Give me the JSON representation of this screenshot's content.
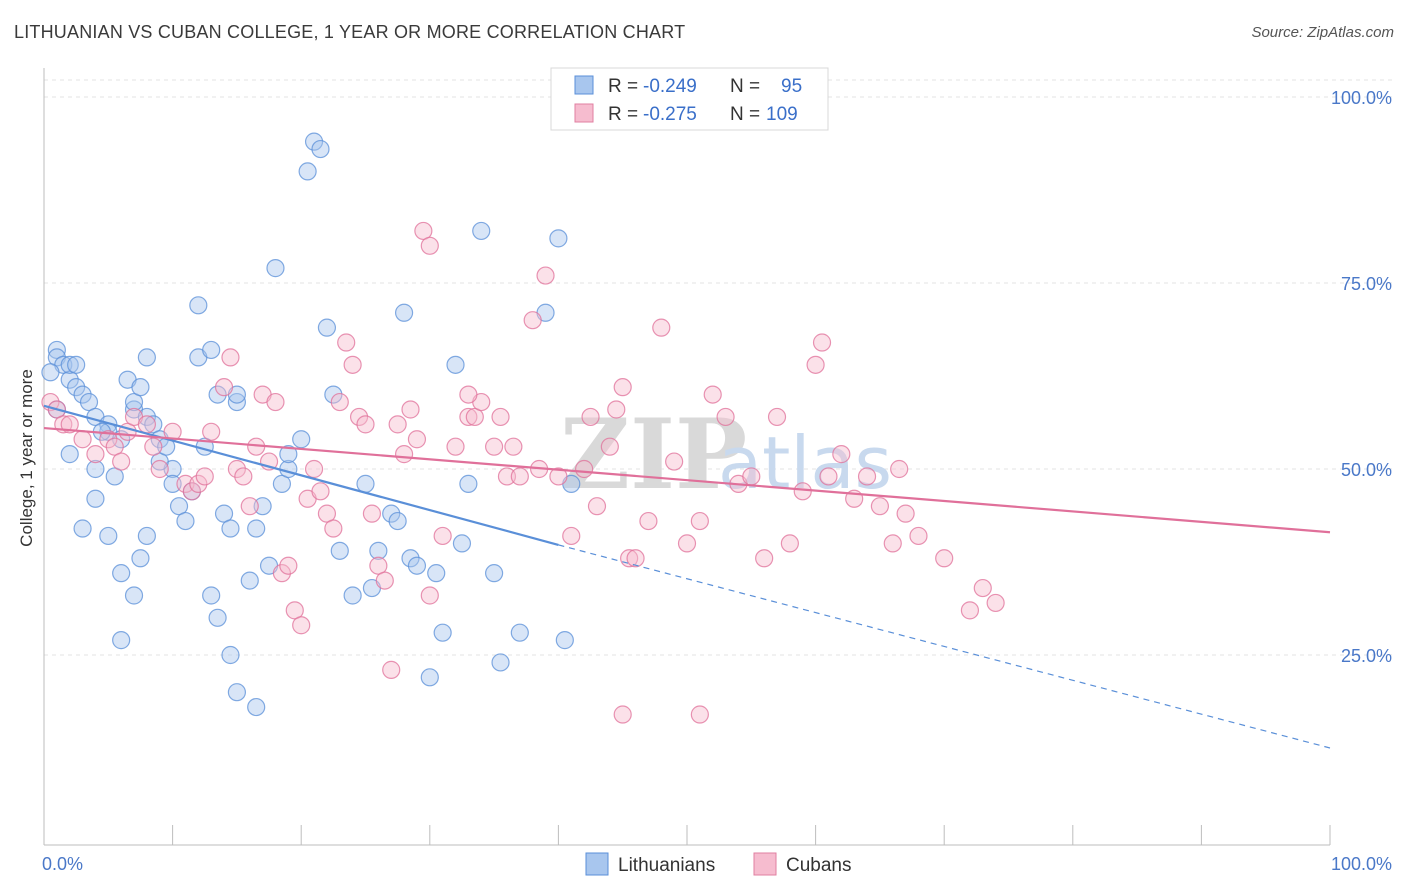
{
  "title": "LITHUANIAN VS CUBAN COLLEGE, 1 YEAR OR MORE CORRELATION CHART",
  "source": "Source: ZipAtlas.com",
  "legend": {
    "rows": [
      {
        "r_label": "R =",
        "r_value": "-0.249",
        "n_label": "N =",
        "n_value": " 95",
        "color": "#9fc1ec",
        "stroke": "#5a8fd8"
      },
      {
        "r_label": "R =",
        "r_value": "-0.275",
        "n_label": "N =",
        "n_value": "109",
        "color": "#f6b8cb",
        "stroke": "#e07fa0"
      }
    ]
  },
  "watermark": {
    "zip": "ZIP",
    "atlas": "atlas"
  },
  "chart_data": {
    "type": "scatter",
    "xlabel": "",
    "ylabel": "College, 1 year or more",
    "xlim": [
      0,
      100
    ],
    "ylim": [
      0,
      100
    ],
    "x_tick_labels": [
      "0.0%",
      "100.0%"
    ],
    "y_ticks": [
      25,
      50,
      75,
      100
    ],
    "y_tick_labels": [
      "25.0%",
      "50.0%",
      "75.0%",
      "100.0%"
    ],
    "grid": "horizontal dashed",
    "legend_position": "top-center",
    "series": [
      {
        "name": "Lithuanians",
        "color": "#5a8fd8",
        "fill": "#a8c6ee",
        "trend": {
          "x0": 0,
          "y0": 58.5,
          "x1": 40,
          "y1": 39.8,
          "dash_x1": 100,
          "dash_y1": 12.5
        },
        "points": [
          [
            1,
            66
          ],
          [
            1,
            65
          ],
          [
            1.5,
            64
          ],
          [
            2,
            62
          ],
          [
            2,
            64
          ],
          [
            2.5,
            61
          ],
          [
            3,
            60
          ],
          [
            3.5,
            59
          ],
          [
            4,
            57
          ],
          [
            5,
            56
          ],
          [
            5,
            55
          ],
          [
            6,
            54
          ],
          [
            6.5,
            62
          ],
          [
            7,
            58
          ],
          [
            7,
            59
          ],
          [
            7.5,
            61
          ],
          [
            8,
            57
          ],
          [
            8,
            65
          ],
          [
            8.5,
            56
          ],
          [
            9,
            54
          ],
          [
            10,
            50
          ],
          [
            10,
            48
          ],
          [
            10.5,
            45
          ],
          [
            11,
            43
          ],
          [
            11.5,
            47
          ],
          [
            12,
            72
          ],
          [
            12,
            65
          ],
          [
            12.5,
            53
          ],
          [
            13,
            66
          ],
          [
            13.5,
            60
          ],
          [
            14,
            44
          ],
          [
            14.5,
            42
          ],
          [
            15,
            59
          ],
          [
            15,
            60
          ],
          [
            16,
            35
          ],
          [
            16.5,
            42
          ],
          [
            17,
            45
          ],
          [
            17.5,
            37
          ],
          [
            18,
            77
          ],
          [
            18.5,
            48
          ],
          [
            19,
            50
          ],
          [
            19,
            52
          ],
          [
            20,
            54
          ],
          [
            20.5,
            90
          ],
          [
            21,
            94
          ],
          [
            21.5,
            93
          ],
          [
            22,
            69
          ],
          [
            22.5,
            60
          ],
          [
            23,
            39
          ],
          [
            24,
            33
          ],
          [
            25,
            48
          ],
          [
            25.5,
            34
          ],
          [
            26,
            39
          ],
          [
            27,
            44
          ],
          [
            27.5,
            43
          ],
          [
            28,
            71
          ],
          [
            28.5,
            38
          ],
          [
            29,
            37
          ],
          [
            30,
            22
          ],
          [
            30.5,
            36
          ],
          [
            31,
            28
          ],
          [
            32,
            64
          ],
          [
            32.5,
            40
          ],
          [
            33,
            48
          ],
          [
            34,
            82
          ],
          [
            35,
            36
          ],
          [
            35.5,
            24
          ],
          [
            37,
            28
          ],
          [
            39,
            71
          ],
          [
            40,
            81
          ],
          [
            40.5,
            27
          ],
          [
            41,
            48
          ],
          [
            4,
            46
          ],
          [
            4,
            50
          ],
          [
            5,
            41
          ],
          [
            6,
            27
          ],
          [
            6,
            36
          ],
          [
            7,
            33
          ],
          [
            7.5,
            38
          ],
          [
            8,
            41
          ],
          [
            9,
            51
          ],
          [
            9.5,
            53
          ],
          [
            13,
            33
          ],
          [
            13.5,
            30
          ],
          [
            14.5,
            25
          ],
          [
            15,
            20
          ],
          [
            16.5,
            18
          ],
          [
            3,
            42
          ],
          [
            2,
            52
          ],
          [
            4.5,
            55
          ],
          [
            5.5,
            49
          ],
          [
            1,
            58
          ],
          [
            0.5,
            63
          ],
          [
            2.5,
            64
          ]
        ]
      },
      {
        "name": "Cubans",
        "color": "#e0709a",
        "fill": "#f6bccf",
        "trend": {
          "x0": 0,
          "y0": 55.5,
          "x1": 100,
          "y1": 41.5
        },
        "points": [
          [
            0.5,
            59
          ],
          [
            1,
            58
          ],
          [
            1.5,
            56
          ],
          [
            2,
            56
          ],
          [
            3,
            54
          ],
          [
            4,
            52
          ],
          [
            5,
            54
          ],
          [
            5.5,
            53
          ],
          [
            6,
            51
          ],
          [
            6.5,
            55
          ],
          [
            7,
            57
          ],
          [
            8,
            56
          ],
          [
            8.5,
            53
          ],
          [
            9,
            50
          ],
          [
            10,
            55
          ],
          [
            11,
            48
          ],
          [
            11.5,
            47
          ],
          [
            12,
            48
          ],
          [
            12.5,
            49
          ],
          [
            13,
            55
          ],
          [
            14,
            61
          ],
          [
            14.5,
            65
          ],
          [
            15,
            50
          ],
          [
            15.5,
            49
          ],
          [
            16,
            45
          ],
          [
            16.5,
            53
          ],
          [
            17,
            60
          ],
          [
            17.5,
            51
          ],
          [
            18,
            59
          ],
          [
            18.5,
            36
          ],
          [
            19,
            37
          ],
          [
            19.5,
            31
          ],
          [
            20,
            29
          ],
          [
            20.5,
            46
          ],
          [
            21,
            50
          ],
          [
            21.5,
            47
          ],
          [
            22,
            44
          ],
          [
            22.5,
            42
          ],
          [
            23,
            59
          ],
          [
            23.5,
            67
          ],
          [
            24,
            64
          ],
          [
            24.5,
            57
          ],
          [
            25,
            56
          ],
          [
            25.5,
            44
          ],
          [
            26,
            37
          ],
          [
            26.5,
            35
          ],
          [
            27,
            23
          ],
          [
            27.5,
            56
          ],
          [
            28,
            52
          ],
          [
            28.5,
            58
          ],
          [
            29,
            54
          ],
          [
            29.5,
            82
          ],
          [
            30,
            80
          ],
          [
            31,
            41
          ],
          [
            32,
            53
          ],
          [
            33,
            57
          ],
          [
            33.5,
            57
          ],
          [
            34,
            59
          ],
          [
            35,
            53
          ],
          [
            35.5,
            57
          ],
          [
            36,
            49
          ],
          [
            36.5,
            53
          ],
          [
            37,
            49
          ],
          [
            38,
            70
          ],
          [
            38.5,
            50
          ],
          [
            39,
            76
          ],
          [
            40,
            49
          ],
          [
            41,
            41
          ],
          [
            42,
            50
          ],
          [
            42.5,
            57
          ],
          [
            43,
            45
          ],
          [
            44,
            53
          ],
          [
            44.5,
            58
          ],
          [
            45,
            61
          ],
          [
            45.5,
            38
          ],
          [
            46,
            38
          ],
          [
            47,
            43
          ],
          [
            48,
            69
          ],
          [
            49,
            51
          ],
          [
            50,
            40
          ],
          [
            51,
            43
          ],
          [
            52,
            60
          ],
          [
            53,
            57
          ],
          [
            54,
            48
          ],
          [
            55,
            49
          ],
          [
            56,
            38
          ],
          [
            57,
            57
          ],
          [
            58,
            40
          ],
          [
            59,
            47
          ],
          [
            60,
            64
          ],
          [
            60.5,
            67
          ],
          [
            61,
            49
          ],
          [
            62,
            52
          ],
          [
            63,
            46
          ],
          [
            64,
            49
          ],
          [
            65,
            45
          ],
          [
            66,
            40
          ],
          [
            66.5,
            50
          ],
          [
            67,
            44
          ],
          [
            68,
            41
          ],
          [
            70,
            38
          ],
          [
            72,
            31
          ],
          [
            73,
            34
          ],
          [
            74,
            32
          ],
          [
            51,
            17
          ],
          [
            30,
            33
          ],
          [
            33,
            60
          ],
          [
            45,
            17
          ]
        ]
      }
    ]
  },
  "bottom_legend": [
    "Lithuanians",
    "Cubans"
  ]
}
